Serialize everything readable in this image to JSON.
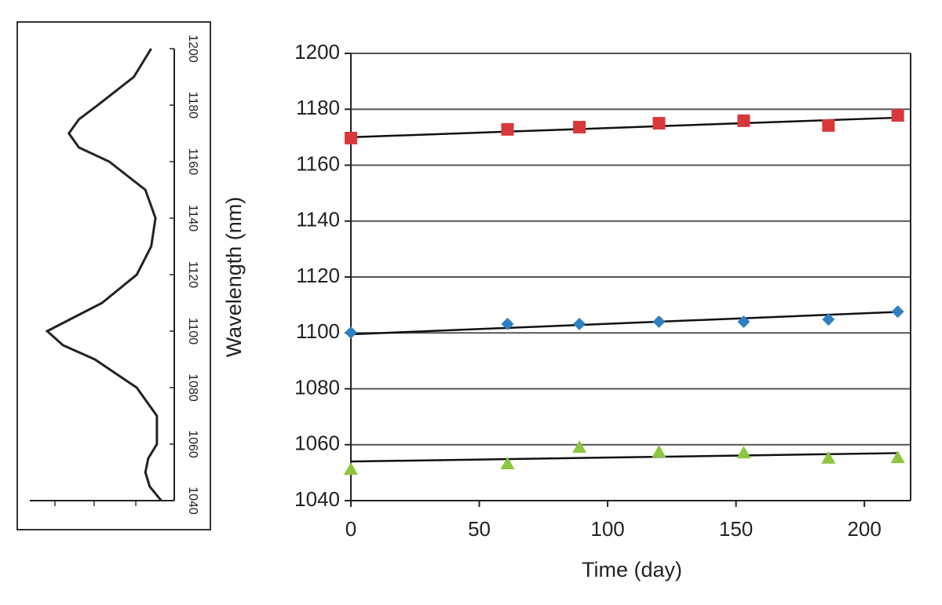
{
  "chart_data": [
    {
      "type": "line",
      "orientation": "vertical",
      "color": "#222222",
      "x": [
        1200,
        1190,
        1180,
        1175,
        1170,
        1165,
        1160,
        1150,
        1140,
        1130,
        1120,
        1110,
        1105,
        1100,
        1095,
        1090,
        1080,
        1070,
        1060,
        1055,
        1050,
        1045,
        1040
      ],
      "values": [
        0.16,
        0.28,
        0.53,
        0.66,
        0.73,
        0.66,
        0.45,
        0.2,
        0.13,
        0.16,
        0.26,
        0.5,
        0.69,
        0.88,
        0.77,
        0.55,
        0.26,
        0.12,
        0.12,
        0.18,
        0.2,
        0.17,
        0.09
      ],
      "xlim": [
        1040,
        1200
      ],
      "xticks": [
        1040,
        1060,
        1080,
        1100,
        1120,
        1140,
        1160,
        1180,
        1200
      ],
      "ylim": [
        0,
        1
      ]
    },
    {
      "type": "scatter",
      "x_label": "Time (day)",
      "y_label": "Wavelength (nm)",
      "xlim": [
        0,
        218
      ],
      "xticks": [
        0,
        50,
        100,
        150,
        200
      ],
      "ylim": [
        1040,
        1200
      ],
      "yticks": [
        1040,
        1060,
        1080,
        1100,
        1120,
        1140,
        1160,
        1180,
        1200
      ],
      "grid": true,
      "x": [
        0,
        61,
        89,
        120,
        153,
        186,
        213
      ],
      "series": [
        {
          "marker": "square",
          "color": "#d9383a",
          "values": [
            1169.7,
            1172.8,
            1173.6,
            1175.0,
            1175.9,
            1174.2,
            1177.8
          ]
        },
        {
          "marker": "diamond",
          "color": "#2f7fc1",
          "values": [
            1100.1,
            1103.2,
            1103.2,
            1104.0,
            1104.0,
            1104.8,
            1107.6
          ]
        },
        {
          "marker": "triangle",
          "color": "#8dc63f",
          "values": [
            1051.2,
            1053.2,
            1059.1,
            1057.4,
            1057.1,
            1055.2,
            1055.4
          ]
        }
      ],
      "trendlines": [
        {
          "color": "#111111",
          "x": [
            0,
            213
          ],
          "values": [
            1170,
            1177
          ]
        },
        {
          "color": "#111111",
          "x": [
            0,
            213
          ],
          "values": [
            1099.5,
            1107.5
          ]
        },
        {
          "color": "#111111",
          "x": [
            0,
            213
          ],
          "values": [
            1054,
            1057
          ]
        }
      ]
    }
  ]
}
